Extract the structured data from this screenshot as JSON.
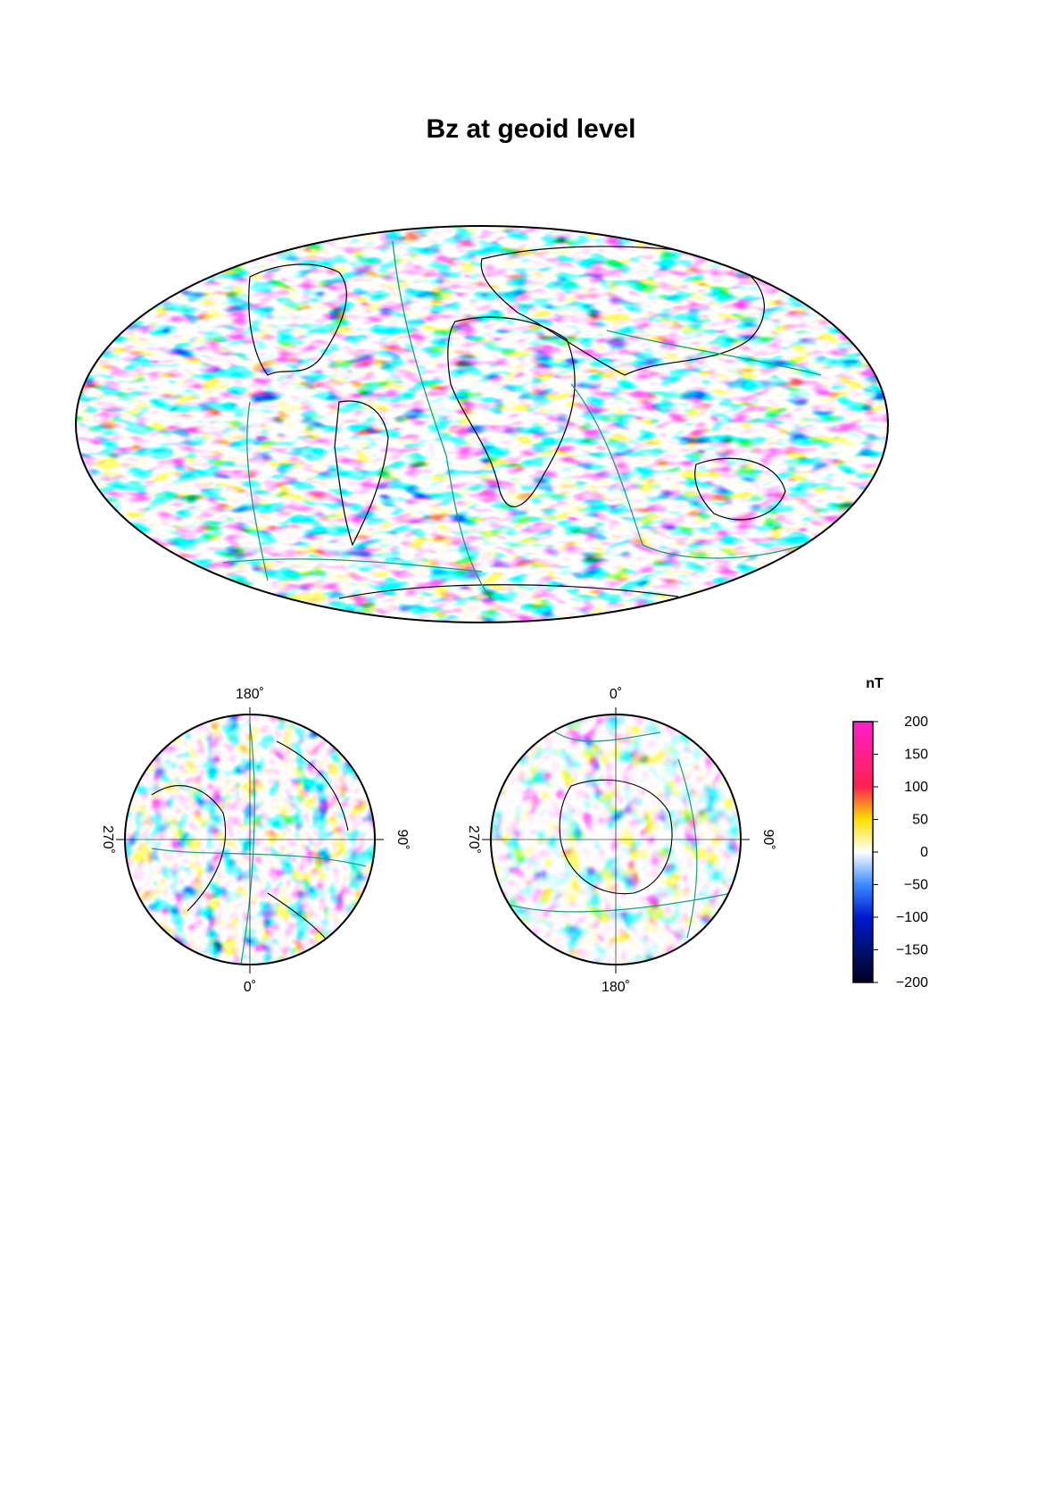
{
  "title": "Bz at geoid level",
  "north_polar": {
    "labels": {
      "top": "180˚",
      "right": "90˚",
      "bottom": "0˚",
      "left": "270˚"
    }
  },
  "south_polar": {
    "labels": {
      "top": "0˚",
      "right": "90˚",
      "bottom": "180˚",
      "left": "270˚"
    }
  },
  "colorbar": {
    "unit": "nT",
    "ticks": [
      "200",
      "150",
      "100",
      "50",
      "0",
      "−50",
      "−100",
      "−150",
      "−200"
    ],
    "stops": [
      {
        "value": 200,
        "color": "#ff1fcf"
      },
      {
        "value": 150,
        "color": "#ff1f8a"
      },
      {
        "value": 100,
        "color": "#ff2050"
      },
      {
        "value": 50,
        "color": "#ffe000"
      },
      {
        "value": 0,
        "color": "#ffffff"
      },
      {
        "value": -50,
        "color": "#3a8cff"
      },
      {
        "value": -100,
        "color": "#0018d0"
      },
      {
        "value": -150,
        "color": "#001070"
      },
      {
        "value": -200,
        "color": "#000020"
      }
    ],
    "range": [
      -200,
      200
    ]
  },
  "colors": {
    "coastline": "#000000",
    "plate_boundary": "#1aa07a",
    "frame": "#000000"
  }
}
